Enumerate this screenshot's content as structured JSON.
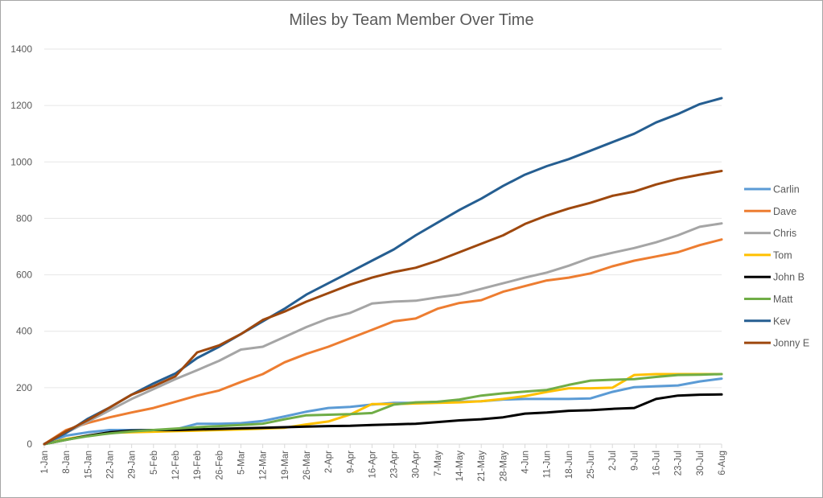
{
  "chart_data": {
    "type": "line",
    "title": "Miles by Team Member Over Time",
    "xlabel": "",
    "ylabel": "",
    "ylim": [
      0,
      1400
    ],
    "yticks": [
      "0",
      "200",
      "400",
      "600",
      "800",
      "1000",
      "1200",
      "1400"
    ],
    "ytick_values": [
      0,
      200,
      400,
      600,
      800,
      1000,
      1200,
      1400
    ],
    "xlim_days": [
      0,
      217
    ],
    "xticks": [
      "1-Jan",
      "8-Jan",
      "15-Jan",
      "22-Jan",
      "29-Jan",
      "5-Feb",
      "12-Feb",
      "19-Feb",
      "26-Feb",
      "5-Mar",
      "12-Mar",
      "19-Mar",
      "26-Mar",
      "2-Apr",
      "9-Apr",
      "16-Apr",
      "23-Apr",
      "30-Apr",
      "7-May",
      "14-May",
      "21-May",
      "28-May",
      "4-Jun",
      "11-Jun",
      "18-Jun",
      "25-Jun",
      "2-Jul",
      "9-Jul",
      "16-Jul",
      "23-Jul",
      "30-Jul",
      "6-Aug"
    ],
    "grid": true,
    "legend_position": "right",
    "x_days": [
      0,
      7,
      14,
      21,
      28,
      35,
      42,
      49,
      56,
      63,
      70,
      77,
      84,
      91,
      98,
      105,
      112,
      119,
      126,
      133,
      140,
      147,
      154,
      161,
      168,
      175,
      182,
      189,
      196,
      203,
      210,
      217
    ],
    "series": [
      {
        "name": "Carlin",
        "color": "#5b9bd5",
        "values": [
          0,
          30,
          42,
          50,
          50,
          50,
          52,
          72,
          72,
          74,
          82,
          98,
          115,
          128,
          132,
          140,
          146,
          146,
          150,
          150,
          152,
          158,
          160,
          160,
          160,
          162,
          185,
          202,
          205,
          208,
          222,
          232
        ]
      },
      {
        "name": "Dave",
        "color": "#ed7d31",
        "values": [
          0,
          50,
          75,
          95,
          112,
          128,
          150,
          172,
          190,
          220,
          248,
          290,
          320,
          345,
          375,
          405,
          435,
          445,
          480,
          500,
          510,
          540,
          560,
          580,
          590,
          605,
          630,
          650,
          665,
          680,
          705,
          725
        ]
      },
      {
        "name": "Chris",
        "color": "#a5a5a5",
        "values": [
          0,
          40,
          80,
          120,
          160,
          195,
          230,
          262,
          295,
          335,
          345,
          380,
          415,
          445,
          465,
          498,
          505,
          508,
          520,
          530,
          550,
          570,
          590,
          608,
          632,
          660,
          678,
          695,
          715,
          740,
          770,
          782
        ]
      },
      {
        "name": "Tom",
        "color": "#ffc000",
        "values": [
          0,
          18,
          30,
          40,
          42,
          44,
          46,
          48,
          50,
          52,
          55,
          58,
          70,
          80,
          105,
          142,
          142,
          144,
          146,
          148,
          152,
          160,
          170,
          185,
          198,
          198,
          200,
          245,
          248,
          248,
          248,
          248
        ]
      },
      {
        "name": "John B",
        "color": "#000000",
        "values": [
          0,
          15,
          30,
          42,
          48,
          50,
          50,
          52,
          54,
          56,
          58,
          60,
          62,
          64,
          65,
          68,
          70,
          72,
          78,
          84,
          88,
          95,
          108,
          112,
          118,
          120,
          125,
          128,
          160,
          172,
          175,
          176
        ]
      },
      {
        "name": "Matt",
        "color": "#70ad47",
        "values": [
          0,
          15,
          28,
          38,
          45,
          50,
          55,
          60,
          64,
          68,
          72,
          88,
          102,
          104,
          106,
          110,
          140,
          148,
          150,
          158,
          172,
          180,
          186,
          192,
          210,
          225,
          228,
          230,
          238,
          245,
          246,
          248
        ]
      },
      {
        "name": "Kev",
        "color": "#255e91",
        "values": [
          0,
          40,
          90,
          130,
          175,
          215,
          250,
          305,
          345,
          390,
          435,
          480,
          530,
          570,
          610,
          650,
          690,
          740,
          785,
          830,
          870,
          915,
          955,
          985,
          1010,
          1040,
          1070,
          1100,
          1140,
          1170,
          1205,
          1226
        ]
      },
      {
        "name": "Jonny E",
        "color": "#9e480e",
        "values": [
          0,
          45,
          85,
          130,
          175,
          205,
          240,
          325,
          350,
          390,
          440,
          470,
          505,
          535,
          565,
          590,
          610,
          625,
          650,
          680,
          710,
          740,
          780,
          810,
          835,
          855,
          880,
          895,
          920,
          940,
          955,
          968
        ]
      }
    ]
  }
}
